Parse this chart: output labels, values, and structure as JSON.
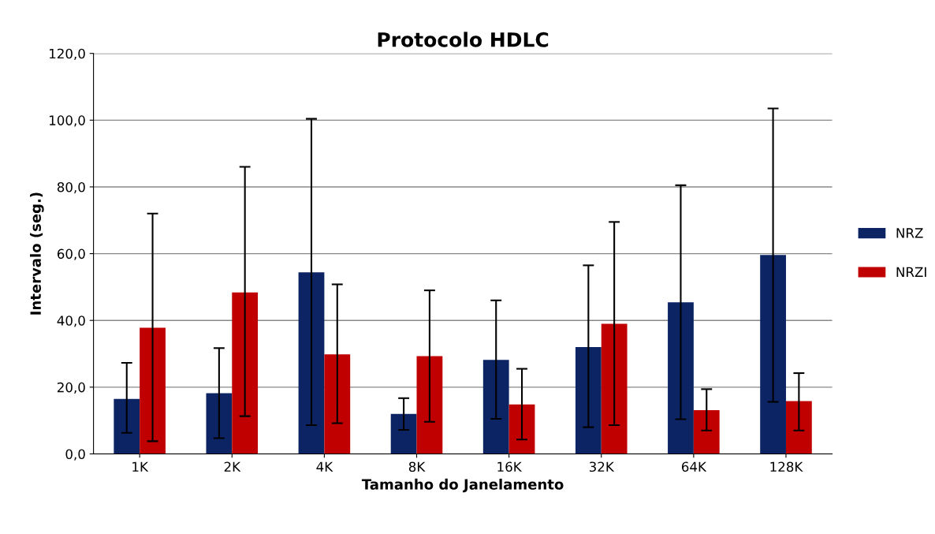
{
  "chart_data": {
    "type": "bar",
    "title": "Protocolo HDLC",
    "xlabel": "Tamanho do Janelamento",
    "ylabel": "Intervalo (seg.)",
    "categories": [
      "1K",
      "2K",
      "4K",
      "8K",
      "16K",
      "32K",
      "64K",
      "128K"
    ],
    "series": [
      {
        "name": "NRZ",
        "color": "#0c2463",
        "values": [
          16.5,
          18.2,
          54.4,
          12.0,
          28.2,
          32.0,
          45.4,
          59.6
        ],
        "errors": [
          [
            6.3,
            27.3
          ],
          [
            4.7,
            31.7
          ],
          [
            8.6,
            100.4
          ],
          [
            7.2,
            16.7
          ],
          [
            10.5,
            46.0
          ],
          [
            8.0,
            56.5
          ],
          [
            10.4,
            80.5
          ],
          [
            15.6,
            103.5
          ]
        ]
      },
      {
        "name": "NRZI",
        "color": "#c00000",
        "values": [
          37.8,
          48.4,
          29.8,
          29.3,
          14.8,
          39.0,
          13.1,
          15.8
        ],
        "errors": [
          [
            3.8,
            72.0
          ],
          [
            11.3,
            86.0
          ],
          [
            9.2,
            50.8
          ],
          [
            9.6,
            49.0
          ],
          [
            4.3,
            25.5
          ],
          [
            8.6,
            69.5
          ],
          [
            7.0,
            19.4
          ],
          [
            7.0,
            24.2
          ]
        ]
      }
    ],
    "ylim": [
      0,
      120
    ],
    "yticks": [
      {
        "value": 0,
        "label": "0,0"
      },
      {
        "value": 20,
        "label": "20,0"
      },
      {
        "value": 40,
        "label": "40,0"
      },
      {
        "value": 60,
        "label": "60,0"
      },
      {
        "value": 80,
        "label": "80,0"
      },
      {
        "value": 100,
        "label": "100,0"
      },
      {
        "value": 120,
        "label": "120,0"
      }
    ],
    "grid": "y",
    "legend": "right"
  }
}
